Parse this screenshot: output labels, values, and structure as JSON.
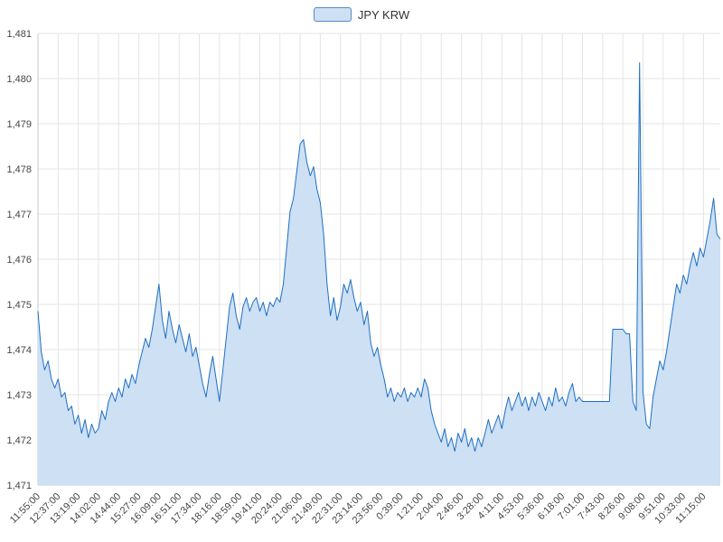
{
  "legend": {
    "label": "JPY KRW"
  },
  "chart_data": {
    "type": "area",
    "series_name": "JPY KRW",
    "title": "",
    "xlabel": "",
    "ylabel": "",
    "grid": true,
    "legend_position": "top-center",
    "ylim": [
      1471,
      1481
    ],
    "y_tick_step": 1,
    "y_tick_labels": [
      "1,471",
      "1,472",
      "1,473",
      "1,474",
      "1,475",
      "1,476",
      "1,477",
      "1,478",
      "1,479",
      "1,480",
      "1,481"
    ],
    "x_tick_labels": [
      "11:55:00",
      "12:37:00",
      "13:19:00",
      "14:02:00",
      "14:44:00",
      "15:27:00",
      "16:09:00",
      "16:51:00",
      "17:34:00",
      "18:16:00",
      "18:59:00",
      "19:41:00",
      "20:24:00",
      "21:06:00",
      "21:49:00",
      "22:31:00",
      "23:14:00",
      "23:56:00",
      "0:39:00",
      "1:21:00",
      "2:04:00",
      "2:46:00",
      "3:28:00",
      "4:11:00",
      "4:53:00",
      "5:36:00",
      "6:18:00",
      "7:01:00",
      "7:43:00",
      "8:26:00",
      "9:08:00",
      "9:51:00",
      "10:33:00",
      "11:15:00"
    ],
    "points_per_tick": 6,
    "values": [
      1474.85,
      1473.95,
      1473.55,
      1473.75,
      1473.35,
      1473.15,
      1473.35,
      1472.95,
      1473.05,
      1472.65,
      1472.75,
      1472.35,
      1472.55,
      1472.15,
      1472.45,
      1472.05,
      1472.35,
      1472.15,
      1472.25,
      1472.65,
      1472.45,
      1472.85,
      1473.05,
      1472.85,
      1473.15,
      1472.95,
      1473.35,
      1473.15,
      1473.45,
      1473.25,
      1473.65,
      1473.95,
      1474.25,
      1474.05,
      1474.45,
      1474.95,
      1475.45,
      1474.65,
      1474.25,
      1474.85,
      1474.45,
      1474.15,
      1474.55,
      1474.25,
      1473.95,
      1474.35,
      1473.85,
      1474.05,
      1473.65,
      1473.25,
      1472.95,
      1473.45,
      1473.85,
      1473.35,
      1472.85,
      1473.55,
      1474.25,
      1474.95,
      1475.25,
      1474.75,
      1474.45,
      1474.95,
      1475.15,
      1474.85,
      1475.05,
      1475.15,
      1474.85,
      1475.05,
      1474.75,
      1475.05,
      1474.95,
      1475.15,
      1475.05,
      1475.45,
      1476.25,
      1477.05,
      1477.35,
      1477.95,
      1478.55,
      1478.65,
      1478.15,
      1477.85,
      1478.05,
      1477.55,
      1477.25,
      1476.55,
      1475.45,
      1474.75,
      1475.15,
      1474.65,
      1474.95,
      1475.45,
      1475.25,
      1475.55,
      1475.15,
      1474.85,
      1475.05,
      1474.55,
      1474.85,
      1474.15,
      1473.85,
      1474.05,
      1473.65,
      1473.35,
      1472.95,
      1473.15,
      1472.85,
      1473.05,
      1472.95,
      1473.15,
      1472.85,
      1473.05,
      1472.95,
      1473.15,
      1472.95,
      1473.35,
      1473.15,
      1472.65,
      1472.35,
      1472.15,
      1471.95,
      1472.25,
      1471.85,
      1472.05,
      1471.75,
      1472.15,
      1471.95,
      1472.25,
      1471.85,
      1472.05,
      1471.75,
      1472.05,
      1471.85,
      1472.15,
      1472.45,
      1472.15,
      1472.35,
      1472.55,
      1472.25,
      1472.65,
      1472.95,
      1472.65,
      1472.85,
      1473.05,
      1472.75,
      1472.95,
      1472.65,
      1472.95,
      1472.75,
      1473.05,
      1472.85,
      1472.65,
      1472.95,
      1472.75,
      1473.15,
      1472.85,
      1472.95,
      1472.75,
      1473.05,
      1473.25,
      1472.85,
      1472.95,
      1472.85,
      1472.85,
      1472.85,
      1472.85,
      1472.85,
      1472.85,
      1472.85,
      1472.85,
      1472.85,
      1474.45,
      1474.45,
      1474.45,
      1474.45,
      1474.35,
      1474.35,
      1472.85,
      1472.65,
      1480.35,
      1473.05,
      1472.35,
      1472.25,
      1472.95,
      1473.35,
      1473.75,
      1473.55,
      1473.95,
      1474.45,
      1474.95,
      1475.45,
      1475.25,
      1475.65,
      1475.45,
      1475.85,
      1476.15,
      1475.85,
      1476.25,
      1476.05,
      1476.45,
      1476.85,
      1477.35,
      1476.55,
      1476.45
    ],
    "colors": {
      "line": "#1e6fc5",
      "fill": "#cde0f4",
      "grid": "#e4e4e4",
      "axis": "#c8c8c8",
      "label": "#444444",
      "legend_border": "#5a8ac2",
      "legend_label": "#333333"
    }
  }
}
